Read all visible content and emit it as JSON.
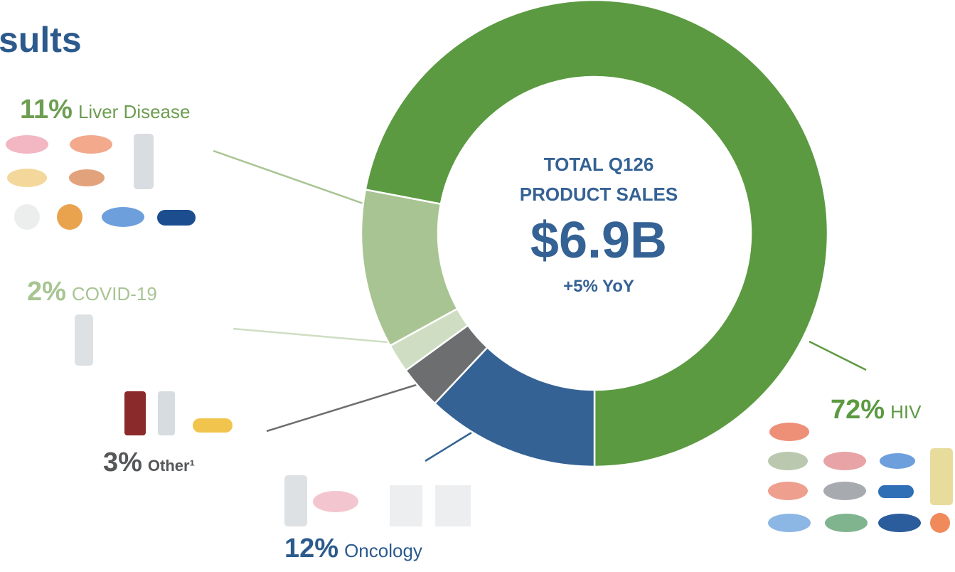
{
  "chart_data": {
    "type": "donut",
    "title": "sults",
    "categories": [
      "HIV",
      "Liver Disease",
      "COVID-19",
      "Other¹",
      "Oncology"
    ],
    "values": [
      72,
      11,
      2,
      3,
      12
    ],
    "value_labels": [
      "72%",
      "11%",
      "2%",
      "3%",
      "12%"
    ],
    "colors": [
      "#5b9a41",
      "#a8c492",
      "#cfdec3",
      "#6c6e70",
      "#356294"
    ],
    "center_text": [
      "TOTAL Q126",
      "PRODUCT SALES",
      "$6.9B",
      "+5% YoY"
    ]
  }
}
